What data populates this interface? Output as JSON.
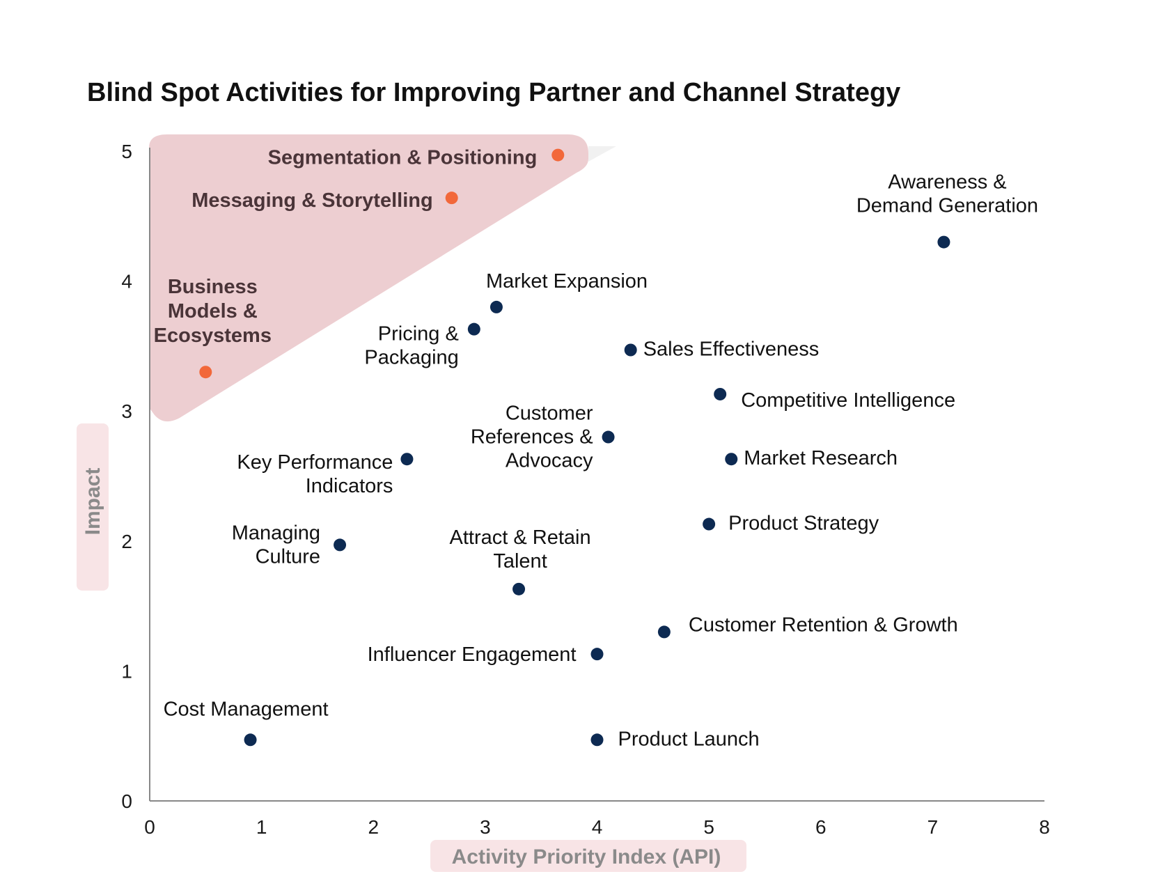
{
  "chart_data": {
    "type": "scatter",
    "title": "Blind Spot Activities for Improving Partner and Channel Strategy",
    "xlabel": "Activity Priority Index (API)",
    "ylabel": "Impact",
    "xlim": [
      0,
      8
    ],
    "ylim": [
      0,
      5
    ],
    "xticks": [
      "0",
      "1",
      "2",
      "3",
      "4",
      "5",
      "6",
      "7",
      "8"
    ],
    "yticks": [
      "0",
      "1",
      "2",
      "3",
      "4",
      "5"
    ],
    "grid": false,
    "colors": {
      "point": "#0d2a52",
      "highlight": "#f2683a",
      "zone": "#eccbcf",
      "axis_label_bg": "#f8e4e6"
    },
    "points": [
      {
        "label": "Segmentation & Positioning",
        "x": 3.65,
        "y": 4.97,
        "highlight": true
      },
      {
        "label": "Messaging & Storytelling",
        "x": 2.7,
        "y": 4.64,
        "highlight": true
      },
      {
        "label": "Business Models & Ecosystems",
        "x": 0.5,
        "y": 3.3,
        "highlight": true
      },
      {
        "label": "Awareness & Demand Generation",
        "x": 7.1,
        "y": 4.3,
        "highlight": false
      },
      {
        "label": "Market Expansion",
        "x": 3.1,
        "y": 3.8,
        "highlight": false
      },
      {
        "label": "Pricing & Packaging",
        "x": 2.9,
        "y": 3.63,
        "highlight": false
      },
      {
        "label": "Sales Effectiveness",
        "x": 4.3,
        "y": 3.47,
        "highlight": false
      },
      {
        "label": "Competitive Intelligence",
        "x": 5.1,
        "y": 3.13,
        "highlight": false
      },
      {
        "label": "Customer References & Advocacy",
        "x": 4.1,
        "y": 2.8,
        "highlight": false
      },
      {
        "label": "Market Research",
        "x": 5.2,
        "y": 2.63,
        "highlight": false
      },
      {
        "label": "Key Performance Indicators",
        "x": 2.3,
        "y": 2.63,
        "highlight": false
      },
      {
        "label": "Product Strategy",
        "x": 5.0,
        "y": 2.13,
        "highlight": false
      },
      {
        "label": "Managing Culture",
        "x": 1.7,
        "y": 1.97,
        "highlight": false
      },
      {
        "label": "Attract & Retain Talent",
        "x": 3.3,
        "y": 1.63,
        "highlight": false
      },
      {
        "label": "Customer Retention & Growth",
        "x": 4.6,
        "y": 1.3,
        "highlight": false
      },
      {
        "label": "Influencer Engagement",
        "x": 4.0,
        "y": 1.13,
        "highlight": false
      },
      {
        "label": "Cost Management",
        "x": 0.9,
        "y": 0.47,
        "highlight": false
      },
      {
        "label": "Product Launch",
        "x": 4.0,
        "y": 0.47,
        "highlight": false
      }
    ]
  }
}
